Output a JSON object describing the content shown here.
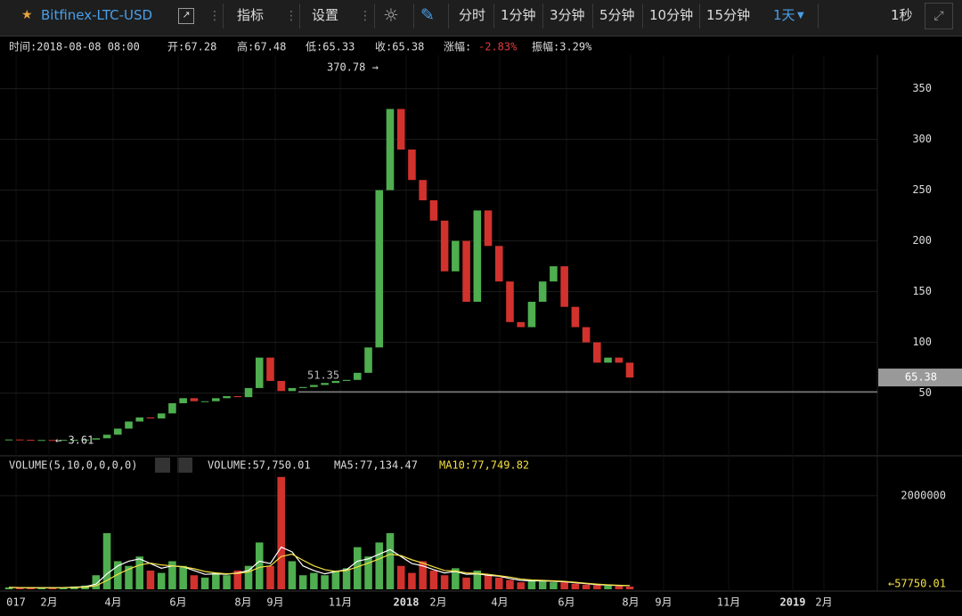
{
  "toolbar": {
    "symbol": "Bitfinex-LTC-USD",
    "indicators": "指标",
    "settings": "设置",
    "intervals": [
      "分时",
      "1分钟",
      "3分钟",
      "5分钟",
      "10分钟",
      "15分钟"
    ],
    "active_interval": "1天",
    "refresh": "1秒"
  },
  "info": {
    "time": "时间:2018-08-08 08:00",
    "open": "开:67.28",
    "high": "高:67.48",
    "low": "低:65.33",
    "close": "收:65.38",
    "change_label": "涨幅:",
    "change": "-2.83%",
    "amplitude": "振幅:3.29%"
  },
  "chart_data": [
    {
      "type": "candlestick",
      "name": "price",
      "close": [
        4.3,
        4.0,
        3.8,
        3.8,
        3.7,
        3.9,
        4.0,
        4.2,
        5.5,
        9,
        15,
        22,
        26,
        25,
        30,
        40,
        45,
        42,
        42,
        45,
        47,
        46,
        55,
        85,
        62,
        52,
        55,
        56,
        58,
        60,
        62,
        63,
        70,
        95,
        250,
        330,
        290,
        260,
        240,
        220,
        170,
        200,
        140,
        230,
        195,
        160,
        120,
        115,
        140,
        160,
        175,
        135,
        115,
        100,
        80,
        85,
        80,
        65.38
      ],
      "up_color": "#4fae4f",
      "down_color": "#d2322d",
      "ylim": [
        -10,
        383
      ],
      "yticks": [
        50,
        100,
        150,
        200,
        250,
        300,
        350
      ],
      "max_label": "370.78 →",
      "min_label": "← 3.61",
      "reference_line": 51.35,
      "last_price": 65.38,
      "x_labels": [
        "017",
        "2月",
        "4月",
        "6月",
        "8月",
        "9月",
        "11月",
        "2018",
        "2月",
        "4月",
        "6月",
        "8月",
        "9月",
        "11月",
        "2019",
        "2月"
      ]
    },
    {
      "type": "volume",
      "legend": [
        "VOLUME(5,10,0,0,0,0)",
        "VOLUME:57,750.01",
        "MA5:77,134.47",
        "MA10:77,749.82"
      ],
      "values": [
        40000,
        30000,
        30000,
        35000,
        30000,
        40000,
        60000,
        80000,
        300000,
        1200000,
        600000,
        500000,
        700000,
        400000,
        350000,
        600000,
        500000,
        300000,
        250000,
        350000,
        300000,
        400000,
        500000,
        1000000,
        500000,
        2400000,
        600000,
        300000,
        350000,
        300000,
        400000,
        450000,
        900000,
        700000,
        1000000,
        1200000,
        500000,
        350000,
        600000,
        400000,
        300000,
        450000,
        250000,
        400000,
        300000,
        250000,
        200000,
        150000,
        180000,
        200000,
        150000,
        150000,
        120000,
        100000,
        90000,
        80000,
        70000,
        57750.01
      ],
      "ma5": {
        "color": "#ffffff",
        "values": [
          40000,
          35000,
          33000,
          33000,
          33000,
          35000,
          45000,
          55000,
          110000,
          330000,
          500000,
          600000,
          650000,
          550000,
          450000,
          500000,
          480000,
          400000,
          320000,
          330000,
          320000,
          350000,
          400000,
          600000,
          550000,
          900000,
          800000,
          500000,
          400000,
          330000,
          380000,
          420000,
          600000,
          650000,
          750000,
          850000,
          700000,
          550000,
          500000,
          420000,
          350000,
          380000,
          320000,
          330000,
          300000,
          280000,
          230000,
          190000,
          180000,
          180000,
          170000,
          160000,
          140000,
          120000,
          100000,
          90000,
          80000,
          77134.47
        ]
      },
      "ma10": {
        "color": "#f5e142",
        "values": [
          40000,
          37000,
          35000,
          34000,
          33000,
          34000,
          38000,
          45000,
          75000,
          190000,
          320000,
          430000,
          520000,
          560000,
          520000,
          500000,
          480000,
          440000,
          380000,
          350000,
          330000,
          340000,
          370000,
          470000,
          500000,
          700000,
          750000,
          620000,
          500000,
          420000,
          380000,
          400000,
          480000,
          560000,
          650000,
          750000,
          720000,
          630000,
          560000,
          480000,
          400000,
          390000,
          350000,
          340000,
          320000,
          290000,
          260000,
          220000,
          200000,
          190000,
          180000,
          170000,
          150000,
          130000,
          110000,
          95000,
          85000,
          77749.82
        ]
      },
      "ylim": [
        0,
        2320000
      ],
      "yticks": [
        {
          "value": 2000000,
          "label": "2000000"
        }
      ],
      "last_label": "←57750.01"
    }
  ]
}
